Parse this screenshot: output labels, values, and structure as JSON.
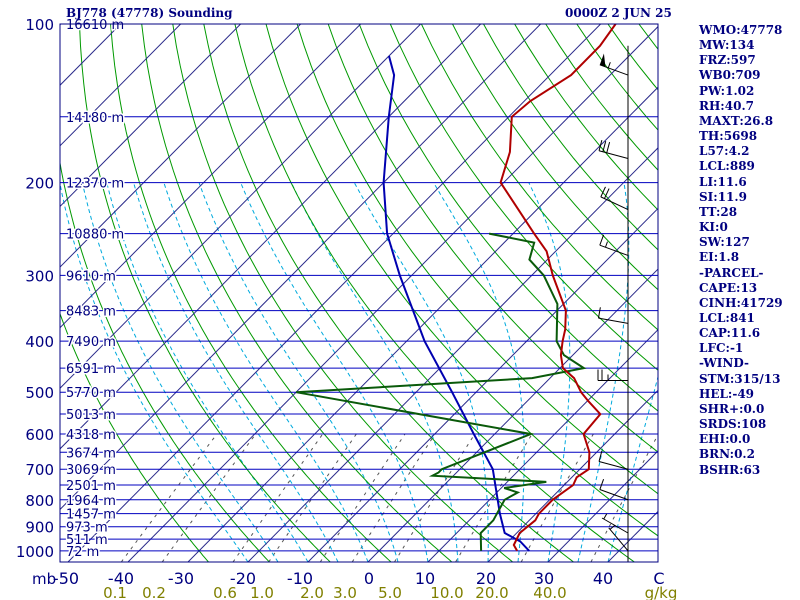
{
  "header": {
    "station": "BJ778 (47778) Sounding",
    "time": "0000Z  2 JUN 25"
  },
  "indices": [
    "WMO:47778",
    "MW:134",
    "FRZ:597",
    "WB0:709",
    "PW:1.02",
    "RH:40.7",
    "MAXT:26.8",
    "TH:5698",
    "L57:4.2",
    "LCL:889",
    "LI:11.6",
    "SI:11.9",
    "TT:28",
    "KI:0",
    "SW:127",
    "EI:1.8",
    "-PARCEL-",
    "CAPE:13",
    "CINH:41729",
    "LCL:841",
    "CAP:11.6",
    "LFC:-1",
    "-WIND-",
    "STM:315/13",
    "HEL:-49",
    "SHR+:0.0",
    "SRDS:108",
    "EHI:0.0",
    "BRN:0.2",
    "BSHR:63"
  ],
  "colors": {
    "isobar": "#0000c0",
    "isotherm": "#2a2a8a",
    "dry_adiabat": "#009900",
    "moist_adiabat": "#00aadd",
    "mixing_ratio": "#555555",
    "temperature": "#b00000",
    "dewpoint": "#0a5a0a",
    "parcel": "#0000b0",
    "labels_blue": "#000080",
    "labels_mixing": "#808000"
  },
  "chart_data": {
    "type": "skew-t",
    "pressure_unit": "mb",
    "pressure_ticks": [
      "100",
      "200",
      "300",
      "400",
      "500",
      "600",
      "700",
      "800",
      "900",
      "1000"
    ],
    "temperature_ticks": [
      "-50",
      "-40",
      "-30",
      "-20",
      "-10",
      "0",
      "10",
      "20",
      "30",
      "40",
      "C"
    ],
    "mixing_ratio_ticks": [
      "0.1",
      "0.2",
      "0.6",
      "1.0",
      "2.0",
      "3.0",
      "5.0",
      "10.0",
      "20.0",
      "40.0",
      "g/kg"
    ],
    "height_labels": [
      {
        "p": 100,
        "label": "16610 m"
      },
      {
        "p": 150,
        "label": "14180 m"
      },
      {
        "p": 200,
        "label": "12370 m"
      },
      {
        "p": 250,
        "label": "10880 m"
      },
      {
        "p": 300,
        "label": "9610 m"
      },
      {
        "p": 350,
        "label": "8483 m"
      },
      {
        "p": 400,
        "label": "7490 m"
      },
      {
        "p": 450,
        "label": "6591 m"
      },
      {
        "p": 500,
        "label": "5770 m"
      },
      {
        "p": 550,
        "label": "5013 m"
      },
      {
        "p": 600,
        "label": "4318 m"
      },
      {
        "p": 650,
        "label": "3674 m"
      },
      {
        "p": 700,
        "label": "3069 m"
      },
      {
        "p": 750,
        "label": "2501 m"
      },
      {
        "p": 800,
        "label": "1964 m"
      },
      {
        "p": 850,
        "label": "1457 m"
      },
      {
        "p": 900,
        "label": "973 m"
      },
      {
        "p": 950,
        "label": "511 m"
      },
      {
        "p": 1000,
        "label": "72 m"
      }
    ],
    "temperature_profile": [
      {
        "p": 1000,
        "t": 23.0
      },
      {
        "p": 975,
        "t": 21.5
      },
      {
        "p": 925,
        "t": 20.5
      },
      {
        "p": 875,
        "t": 21.0
      },
      {
        "p": 850,
        "t": 20.5
      },
      {
        "p": 800,
        "t": 20.5
      },
      {
        "p": 750,
        "t": 21.5
      },
      {
        "p": 725,
        "t": 20.8
      },
      {
        "p": 700,
        "t": 21.5
      },
      {
        "p": 650,
        "t": 18.8
      },
      {
        "p": 600,
        "t": 14.8
      },
      {
        "p": 550,
        "t": 14.3
      },
      {
        "p": 520,
        "t": 10.2
      },
      {
        "p": 500,
        "t": 7.5
      },
      {
        "p": 470,
        "t": 4.0
      },
      {
        "p": 450,
        "t": 0.5
      },
      {
        "p": 425,
        "t": -2.0
      },
      {
        "p": 400,
        "t": -4.0
      },
      {
        "p": 380,
        "t": -5.5
      },
      {
        "p": 350,
        "t": -8.5
      },
      {
        "p": 300,
        "t": -16.5
      },
      {
        "p": 270,
        "t": -21.5
      },
      {
        "p": 250,
        "t": -26.5
      },
      {
        "p": 220,
        "t": -34.5
      },
      {
        "p": 200,
        "t": -40.5
      },
      {
        "p": 175,
        "t": -44.0
      },
      {
        "p": 150,
        "t": -49.5
      },
      {
        "p": 140,
        "t": -49.0
      },
      {
        "p": 125,
        "t": -46.5
      },
      {
        "p": 110,
        "t": -46.5
      },
      {
        "p": 100,
        "t": -47.5
      }
    ],
    "dewpoint_profile": [
      {
        "p": 1000,
        "t": 17.0
      },
      {
        "p": 925,
        "t": 14.0
      },
      {
        "p": 875,
        "t": 14.0
      },
      {
        "p": 850,
        "t": 13.5
      },
      {
        "p": 800,
        "t": 12.5
      },
      {
        "p": 775,
        "t": 13.5
      },
      {
        "p": 760,
        "t": 10.5
      },
      {
        "p": 740,
        "t": 16.5
      },
      {
        "p": 720,
        "t": -3.5
      },
      {
        "p": 710,
        "t": -3.0
      },
      {
        "p": 700,
        "t": -3.0
      },
      {
        "p": 600,
        "t": 6.0
      },
      {
        "p": 500,
        "t": -40.0
      },
      {
        "p": 470,
        "t": -3.0
      },
      {
        "p": 450,
        "t": 4.0
      },
      {
        "p": 425,
        "t": -1.5
      },
      {
        "p": 400,
        "t": -5.0
      },
      {
        "p": 340,
        "t": -11.0
      },
      {
        "p": 300,
        "t": -18.0
      },
      {
        "p": 280,
        "t": -23.0
      },
      {
        "p": 260,
        "t": -25.0
      },
      {
        "p": 250,
        "t": -34.0
      }
    ],
    "parcel_path": [
      {
        "p": 1000,
        "t": 25.0
      },
      {
        "p": 960,
        "t": 22.0
      },
      {
        "p": 925,
        "t": 18.0
      },
      {
        "p": 850,
        "t": 14.0
      },
      {
        "p": 700,
        "t": 5.5
      },
      {
        "p": 600,
        "t": -3.5
      },
      {
        "p": 500,
        "t": -14.0
      },
      {
        "p": 400,
        "t": -27.0
      },
      {
        "p": 300,
        "t": -42.0
      },
      {
        "p": 250,
        "t": -51.0
      },
      {
        "p": 200,
        "t": -60.0
      },
      {
        "p": 150,
        "t": -70.0
      },
      {
        "p": 125,
        "t": -76.0
      },
      {
        "p": 115,
        "t": -80.0
      }
    ],
    "wind_barbs": [
      {
        "p": 125,
        "dir": 290,
        "speed_kt": 55
      },
      {
        "p": 180,
        "dir": 285,
        "speed_kt": 30
      },
      {
        "p": 225,
        "dir": 295,
        "speed_kt": 20
      },
      {
        "p": 275,
        "dir": 290,
        "speed_kt": 15
      },
      {
        "p": 370,
        "dir": 280,
        "speed_kt": 10
      },
      {
        "p": 475,
        "dir": 270,
        "speed_kt": 25
      },
      {
        "p": 700,
        "dir": 285,
        "speed_kt": 10
      },
      {
        "p": 800,
        "dir": 290,
        "speed_kt": 10
      },
      {
        "p": 925,
        "dir": 300,
        "speed_kt": 5
      },
      {
        "p": 1000,
        "dir": 320,
        "speed_kt": 5
      }
    ]
  }
}
